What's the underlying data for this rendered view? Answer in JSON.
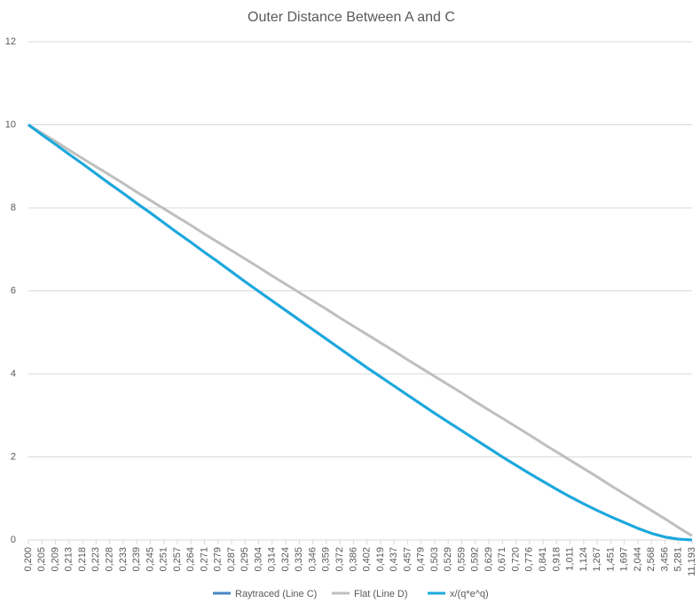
{
  "chart_data": {
    "type": "line",
    "title": "Outer Distance Between A and C",
    "categories": [
      "0,200",
      "0,205",
      "0,209",
      "0,213",
      "0,218",
      "0,223",
      "0,228",
      "0,233",
      "0,239",
      "0,245",
      "0,251",
      "0,257",
      "0,264",
      "0,271",
      "0,279",
      "0,287",
      "0,295",
      "0,304",
      "0,314",
      "0,324",
      "0,335",
      "0,346",
      "0,359",
      "0,372",
      "0,386",
      "0,402",
      "0,419",
      "0,437",
      "0,457",
      "0,479",
      "0,503",
      "0,529",
      "0,559",
      "0,592",
      "0,629",
      "0,671",
      "0,720",
      "0,776",
      "0,841",
      "0,918",
      "1,011",
      "1,124",
      "1,267",
      "1,451",
      "1,697",
      "2,044",
      "2,568",
      "3,456",
      "5,281",
      "11,193"
    ],
    "series": [
      {
        "name": "Raytraced (Line C)",
        "color": "#4a86c5",
        "values": [
          10,
          9.76,
          9.53,
          9.29,
          9.06,
          8.82,
          8.58,
          8.35,
          8.11,
          7.88,
          7.64,
          7.4,
          7.17,
          6.93,
          6.7,
          6.46,
          6.22,
          5.99,
          5.76,
          5.53,
          5.3,
          5.07,
          4.84,
          4.61,
          4.38,
          4.15,
          3.93,
          3.71,
          3.49,
          3.27,
          3.05,
          2.84,
          2.63,
          2.42,
          2.21,
          2.0,
          1.8,
          1.6,
          1.41,
          1.22,
          1.04,
          0.87,
          0.71,
          0.56,
          0.42,
          0.28,
          0.16,
          0.07,
          0.02,
          0
        ]
      },
      {
        "name": "Flat (Line D)",
        "color": "#bfbfbf",
        "values": [
          10,
          9.8,
          9.6,
          9.39,
          9.19,
          8.99,
          8.79,
          8.59,
          8.38,
          8.18,
          7.98,
          7.78,
          7.58,
          7.37,
          7.17,
          6.97,
          6.77,
          6.57,
          6.36,
          6.16,
          5.96,
          5.76,
          5.56,
          5.35,
          5.15,
          4.95,
          4.75,
          4.55,
          4.34,
          4.14,
          3.94,
          3.74,
          3.54,
          3.33,
          3.13,
          2.93,
          2.73,
          2.53,
          2.32,
          2.12,
          1.92,
          1.72,
          1.52,
          1.31,
          1.11,
          0.91,
          0.71,
          0.51,
          0.3,
          0.1
        ]
      },
      {
        "name": "x/(q*e^q)",
        "color": "#1aa9dd",
        "values": [
          10,
          9.76,
          9.53,
          9.29,
          9.06,
          8.82,
          8.58,
          8.35,
          8.11,
          7.88,
          7.64,
          7.4,
          7.17,
          6.93,
          6.7,
          6.46,
          6.22,
          5.99,
          5.76,
          5.53,
          5.3,
          5.07,
          4.84,
          4.61,
          4.38,
          4.15,
          3.93,
          3.71,
          3.49,
          3.27,
          3.05,
          2.84,
          2.63,
          2.42,
          2.21,
          2.0,
          1.8,
          1.6,
          1.41,
          1.22,
          1.04,
          0.87,
          0.71,
          0.56,
          0.42,
          0.28,
          0.16,
          0.07,
          0.02,
          0
        ]
      }
    ],
    "ylim": [
      0,
      12
    ],
    "yticks": [
      0,
      2,
      4,
      6,
      8,
      10,
      12
    ],
    "grid": true,
    "legend": "bottom"
  }
}
